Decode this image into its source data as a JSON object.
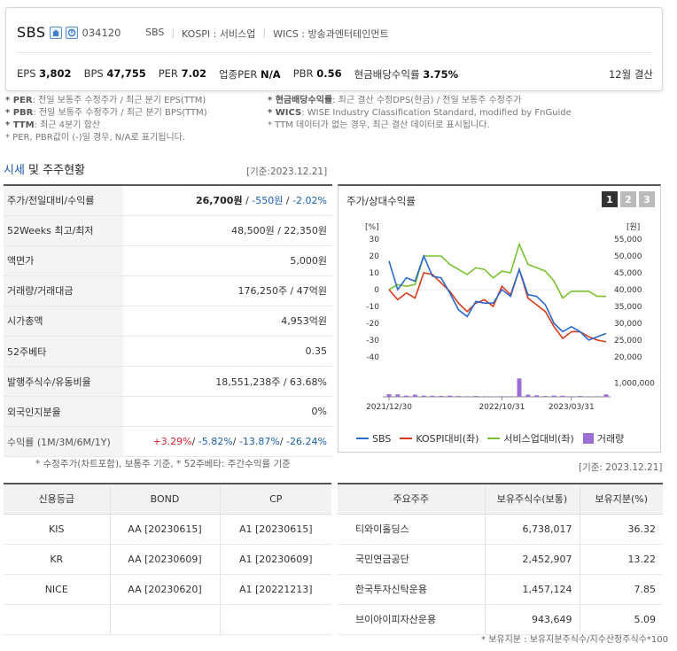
{
  "header": {
    "company_name": "SBS",
    "stock_code": "034120",
    "tags": [
      "SBS",
      "KOSPI : 서비스업",
      "WICS : 방송과엔터테인먼트"
    ],
    "metrics": [
      {
        "label": "EPS",
        "value": "3,802"
      },
      {
        "label": "BPS",
        "value": "47,755"
      },
      {
        "label": "PER",
        "value": "7.02"
      },
      {
        "label": "업종PER",
        "value": "N/A"
      },
      {
        "label": "PBR",
        "value": "0.56"
      },
      {
        "label": "현금배당수익률",
        "value": "3.75%"
      }
    ],
    "settlement": "12월 결산"
  },
  "notes": {
    "left": [
      {
        "key": "* PER",
        "text": ": 전일 보통주 수정주가 / 최근 분기 EPS(TTM)"
      },
      {
        "key": "* PBR",
        "text": ": 전일 보통주 수정주가 / 최근 분기 BPS(TTM)"
      },
      {
        "key": "* TTM",
        "text": ": 최근 4분기 합산"
      },
      {
        "key": "",
        "text": "* PER, PBR값이 (-)일 경우, N/A로 표기됩니다."
      }
    ],
    "right": [
      {
        "key": "* 현금배당수익률",
        "text": ": 최근 결산 수정DPS(현금) / 전일 보통주 수정주가"
      },
      {
        "key": "* WICS",
        "text": ": WISE Industry Classification Standard, modified by FnGuide"
      },
      {
        "key": "",
        "text": "* TTM 데이터가 없는 경우, 최근 결산 데이터로 표시됩니다."
      }
    ]
  },
  "price_section": {
    "title_a": "시세",
    "title_b": " 및 주주현황",
    "base_date": "[기준:2023.12.21]",
    "rows": [
      {
        "label": "주가/전일대비/수익률",
        "v1": "26,700원",
        "v2": "-550원",
        "v3": "-2.02%"
      },
      {
        "label": "52Weeks 최고/최저",
        "value": "48,500원 / 22,350원"
      },
      {
        "label": "액면가",
        "value": "5,000원"
      },
      {
        "label": "거래량/거래대금",
        "value": "176,250주 / 47억원"
      },
      {
        "label": "시가총액",
        "value": "4,953억원"
      },
      {
        "label": "52주베타",
        "value": "0.35"
      },
      {
        "label": "발행주식수/유동비율",
        "value": "18,551,238주 / 63.68%"
      },
      {
        "label": "외국인지분율",
        "value": "0%"
      },
      {
        "label": "수익률 (1M/3M/6M/1Y)",
        "r1": "+3.29%",
        "r2": "-5.82%",
        "r3": "-13.87%",
        "r4": "-26.24%"
      }
    ],
    "footnote": "* 수정주가(차트포함), 보통주 기준, * 52주베타: 주간수익률 기준"
  },
  "chart_panel": {
    "title": "주가/상대수익률",
    "pages": [
      "1",
      "2",
      "3"
    ]
  },
  "chart_data": {
    "type": "line",
    "x_ticks": [
      "2021/12/30",
      "2022/10/31",
      "2023/03/31"
    ],
    "left_axis_unit": "[%]",
    "right_axis_unit": "[원]",
    "left_ticks": [
      30,
      20,
      10,
      0,
      -10,
      -20,
      -30,
      -40
    ],
    "right_ticks": [
      "55,000",
      "50,000",
      "45,000",
      "40,000",
      "35,000",
      "30,000",
      "25,000",
      "20,000"
    ],
    "volume_tick": "1,000,000",
    "ylim_left": [
      -40,
      30
    ],
    "ylim_right": [
      20000,
      55000
    ],
    "series": [
      {
        "name": "SBS",
        "color": "#2a6ad1",
        "axis": "right",
        "values": [
          48500,
          40000,
          43500,
          42500,
          50000,
          44000,
          43500,
          39000,
          34000,
          32000,
          36500,
          36000,
          36000,
          40000,
          38000,
          46000,
          38500,
          38000,
          35500,
          30000,
          27500,
          29000,
          27500,
          25000,
          26000,
          27000
        ]
      },
      {
        "name": "KOSPI대비(좌)",
        "color": "#d9391c",
        "axis": "left",
        "values": [
          0,
          -6,
          -2,
          -5,
          10,
          9,
          4,
          -1,
          -8,
          -13,
          -8,
          -6,
          -10,
          2,
          -3,
          12,
          -5,
          -9,
          -13,
          -22,
          -29,
          -25,
          -25,
          -28,
          -30,
          -31
        ]
      },
      {
        "name": "서비스업대비(좌)",
        "color": "#79c22e",
        "axis": "left",
        "values": [
          0,
          3,
          2,
          3,
          20,
          20,
          20,
          15,
          12,
          9,
          13,
          12,
          7,
          11,
          10,
          27,
          15,
          13,
          11,
          5,
          -5,
          -1,
          -1,
          -1,
          -4,
          -4
        ]
      },
      {
        "name": "거래량",
        "color": "#9c6fd6",
        "axis": "volume",
        "values": [
          190000,
          180000,
          90000,
          160000,
          90000,
          80000,
          70000,
          90000,
          60000,
          40000,
          60000,
          40000,
          30000,
          40000,
          40000,
          1350000,
          160000,
          110000,
          60000,
          90000,
          80000,
          40000,
          60000,
          30000,
          40000,
          176250
        ]
      }
    ]
  },
  "credit": {
    "headers": [
      "신용등급",
      "BOND",
      "CP"
    ],
    "rows": [
      [
        "KIS",
        "AA  [20230615]",
        "A1  [20230615]"
      ],
      [
        "KR",
        "AA  [20230609]",
        "A1  [20230609]"
      ],
      [
        "NICE",
        "AA  [20230620]",
        "A1  [20221213]"
      ],
      [
        "",
        "",
        ""
      ]
    ]
  },
  "shareholders": {
    "base_date": "[기준: 2023.12.21]",
    "headers": [
      "주요주주",
      "보유주식수(보통)",
      "보유지분(%)"
    ],
    "rows": [
      [
        "티와이홀딩스",
        "6,738,017",
        "36.32"
      ],
      [
        "국민연금공단",
        "2,452,907",
        "13.22"
      ],
      [
        "한국투자신탁운용",
        "1,457,124",
        "7.85"
      ],
      [
        "브이아이피자산운용",
        "943,649",
        "5.09"
      ]
    ],
    "footnote": "* 보유지분 : 보유지분주식수/지수산정주식수*100"
  }
}
